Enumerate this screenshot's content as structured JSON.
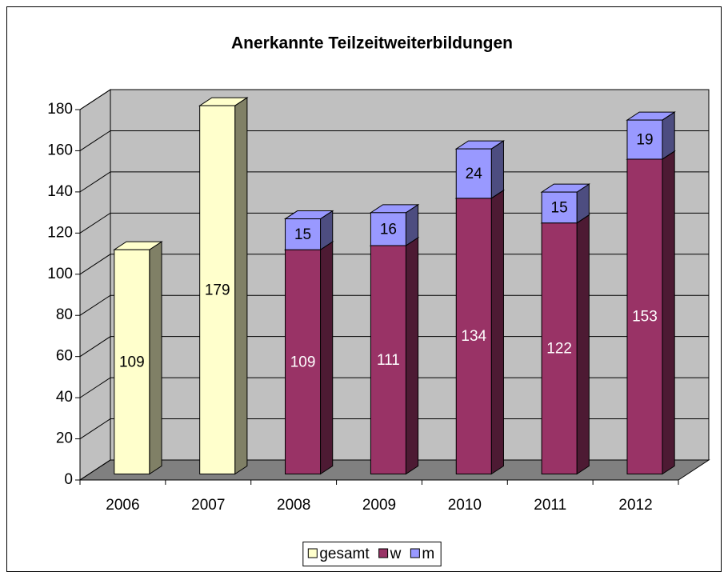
{
  "chart_data": {
    "type": "bar3d_stacked",
    "title": "Anerkannte Teilzeitweiterbildungen",
    "categories": [
      "2006",
      "2007",
      "2008",
      "2009",
      "2010",
      "2011",
      "2012"
    ],
    "series": [
      {
        "name": "gesamt",
        "color": "#ffffcc",
        "values": [
          109,
          179,
          null,
          null,
          null,
          null,
          null
        ]
      },
      {
        "name": "w",
        "color": "#993366",
        "values": [
          null,
          null,
          109,
          111,
          134,
          122,
          153
        ]
      },
      {
        "name": "m",
        "color": "#9999ff",
        "values": [
          null,
          null,
          15,
          16,
          24,
          15,
          19
        ]
      }
    ],
    "ylim": [
      0,
      180
    ],
    "yticks": [
      0,
      20,
      40,
      60,
      80,
      100,
      120,
      140,
      160,
      180
    ],
    "grid": true,
    "legend": "bottom"
  }
}
